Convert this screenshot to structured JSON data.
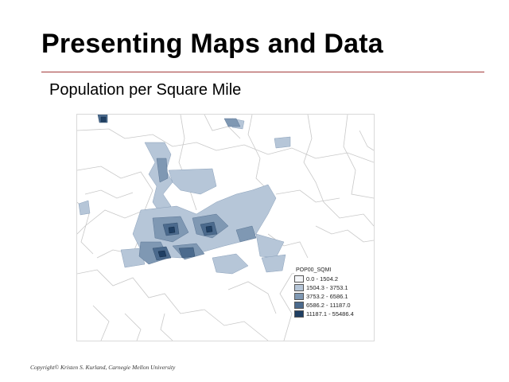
{
  "slide": {
    "title": "Presenting Maps and Data",
    "subtitle": "Population per Square Mile",
    "copyright": "Copyright© Kristen S. Kurland, Carnegie Mellon University"
  },
  "map": {
    "legend": {
      "title": "POP00_SQMI",
      "classes": [
        {
          "label": "0.0 - 1504.2",
          "color": "#f4f6f9"
        },
        {
          "label": "1504.3 - 3753.1",
          "color": "#b6c6d8"
        },
        {
          "label": "3753.2 - 6586.1",
          "color": "#7f98b3"
        },
        {
          "label": "6586.2 - 11187.0",
          "color": "#4b6a8d"
        },
        {
          "label": "11187.1 - 55486.4",
          "color": "#1f3f63"
        }
      ]
    }
  }
}
